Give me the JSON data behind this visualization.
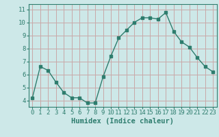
{
  "x": [
    0,
    1,
    2,
    3,
    4,
    5,
    6,
    7,
    8,
    9,
    10,
    11,
    12,
    13,
    14,
    15,
    16,
    17,
    18,
    19,
    20,
    21,
    22,
    23
  ],
  "y": [
    4.2,
    6.6,
    6.3,
    5.4,
    4.6,
    4.2,
    4.2,
    3.8,
    3.8,
    5.8,
    7.4,
    8.8,
    9.4,
    10.0,
    10.35,
    10.35,
    10.25,
    10.75,
    9.3,
    8.5,
    8.1,
    7.3,
    6.6,
    6.2
  ],
  "line_color": "#2e7d6e",
  "marker": "s",
  "markersize": 2.5,
  "bg_color": "#cde8e8",
  "grid_color": "#c8a8a8",
  "xlabel": "Humidex (Indice chaleur)",
  "ylim": [
    3.5,
    11.4
  ],
  "xlim": [
    -0.5,
    23.5
  ],
  "yticks": [
    4,
    5,
    6,
    7,
    8,
    9,
    10,
    11
  ],
  "xticks": [
    0,
    1,
    2,
    3,
    4,
    5,
    6,
    7,
    8,
    9,
    10,
    11,
    12,
    13,
    14,
    15,
    16,
    17,
    18,
    19,
    20,
    21,
    22,
    23
  ],
  "tick_color": "#2e7d6e",
  "tick_fontsize": 6.5,
  "xlabel_fontsize": 7.5,
  "linewidth": 1.0
}
